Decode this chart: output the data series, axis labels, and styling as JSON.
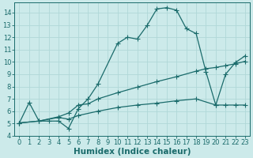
{
  "line1_x": [
    0,
    1,
    2,
    3,
    4,
    5,
    6,
    7,
    8,
    10,
    11,
    12,
    13,
    14,
    15,
    16,
    17,
    18,
    19,
    20,
    21,
    22,
    23
  ],
  "line1_y": [
    5.05,
    6.7,
    5.2,
    5.2,
    5.2,
    4.6,
    6.2,
    7.0,
    8.2,
    11.5,
    12.0,
    11.85,
    12.95,
    14.3,
    14.4,
    14.2,
    12.7,
    12.3,
    9.2,
    6.5,
    9.0,
    9.95,
    10.5
  ],
  "line2_x": [
    0,
    2,
    4,
    5,
    6,
    7,
    8,
    10,
    12,
    14,
    16,
    18,
    19,
    20,
    21,
    22,
    23
  ],
  "line2_y": [
    5.05,
    5.2,
    5.55,
    5.85,
    6.5,
    6.6,
    7.0,
    7.5,
    7.95,
    8.4,
    8.8,
    9.25,
    9.45,
    9.55,
    9.7,
    9.85,
    10.05
  ],
  "line3_x": [
    0,
    2,
    4,
    5,
    6,
    8,
    10,
    12,
    14,
    16,
    18,
    20,
    21,
    22,
    23
  ],
  "line3_y": [
    5.05,
    5.2,
    5.5,
    5.35,
    5.65,
    6.0,
    6.3,
    6.5,
    6.65,
    6.85,
    7.0,
    6.5,
    6.5,
    6.5,
    6.5
  ],
  "line_color": "#1a6b6b",
  "bg_color": "#cceaea",
  "grid_color": "#b0d8d8",
  "xlabel": "Humidex (Indice chaleur)",
  "xlim": [
    -0.5,
    23.5
  ],
  "ylim": [
    4,
    14.8
  ],
  "yticks": [
    4,
    5,
    6,
    7,
    8,
    9,
    10,
    11,
    12,
    13,
    14
  ],
  "xticks": [
    0,
    1,
    2,
    3,
    4,
    5,
    6,
    7,
    8,
    9,
    10,
    11,
    12,
    13,
    14,
    15,
    16,
    17,
    18,
    19,
    20,
    21,
    22,
    23
  ],
  "marker": "+",
  "marker_size": 4,
  "linewidth": 0.9,
  "xlabel_fontsize": 7.5,
  "tick_fontsize": 6.0
}
